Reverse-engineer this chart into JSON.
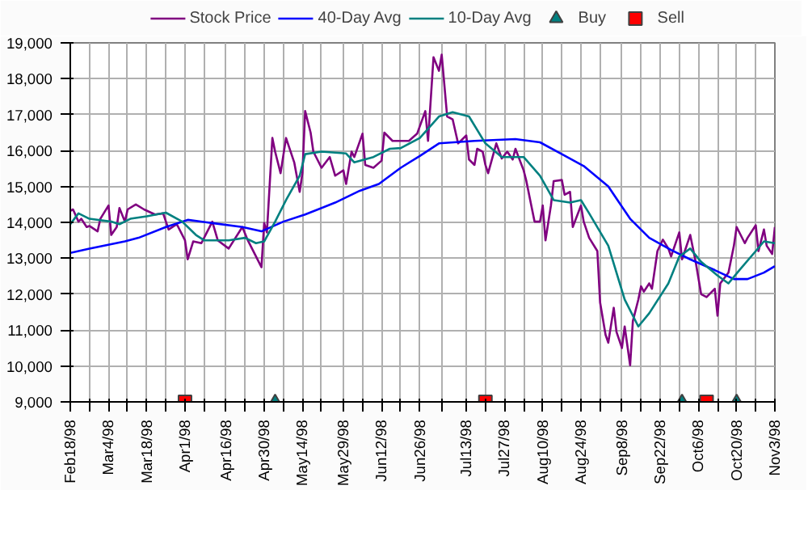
{
  "chart_data": {
    "type": "line",
    "xlim": [
      "1998-02-18",
      "1998-11-03"
    ],
    "ylim": [
      9000,
      19000
    ],
    "xticks": [
      {
        "value": "1998-02-18",
        "label": "Feb18/98"
      },
      {
        "value": "1998-02-25",
        "label": null
      },
      {
        "value": "1998-03-04",
        "label": "Mar4/98"
      },
      {
        "value": "1998-03-11",
        "label": null
      },
      {
        "value": "1998-03-18",
        "label": "Mar18/98"
      },
      {
        "value": "1998-03-25",
        "label": null
      },
      {
        "value": "1998-04-01",
        "label": "Apr1/98"
      },
      {
        "value": "1998-04-08",
        "label": null
      },
      {
        "value": "1998-04-16",
        "label": "Apr16/98"
      },
      {
        "value": "1998-04-23",
        "label": null
      },
      {
        "value": "1998-04-30",
        "label": "Apr30/98"
      },
      {
        "value": "1998-05-07",
        "label": null
      },
      {
        "value": "1998-05-14",
        "label": "May14/98"
      },
      {
        "value": "1998-05-21",
        "label": null
      },
      {
        "value": "1998-05-29",
        "label": "May29/98"
      },
      {
        "value": "1998-06-05",
        "label": null
      },
      {
        "value": "1998-06-12",
        "label": "Jun12/98"
      },
      {
        "value": "1998-06-19",
        "label": null
      },
      {
        "value": "1998-06-26",
        "label": "Jun26/98"
      },
      {
        "value": "1998-07-04",
        "label": null
      },
      {
        "value": "1998-07-13",
        "label": "Jul13/98"
      },
      {
        "value": "1998-07-20",
        "label": null
      },
      {
        "value": "1998-07-27",
        "label": "Jul27/98"
      },
      {
        "value": "1998-08-03",
        "label": null
      },
      {
        "value": "1998-08-10",
        "label": "Aug10/98"
      },
      {
        "value": "1998-08-17",
        "label": null
      },
      {
        "value": "1998-08-24",
        "label": "Aug24/98"
      },
      {
        "value": "1998-08-31",
        "label": null
      },
      {
        "value": "1998-09-08",
        "label": "Sep8/98"
      },
      {
        "value": "1998-09-15",
        "label": null
      },
      {
        "value": "1998-09-22",
        "label": "Sep22/98"
      },
      {
        "value": "1998-09-29",
        "label": null
      },
      {
        "value": "1998-10-06",
        "label": "Oct6/98"
      },
      {
        "value": "1998-10-13",
        "label": null
      },
      {
        "value": "1998-10-20",
        "label": "Oct20/98"
      },
      {
        "value": "1998-10-27",
        "label": null
      },
      {
        "value": "1998-11-03",
        "label": "Nov3/98"
      }
    ],
    "yticks": [
      {
        "value": 9000,
        "label": "9,000"
      },
      {
        "value": 10000,
        "label": "10,000"
      },
      {
        "value": 11000,
        "label": "11,000"
      },
      {
        "value": 12000,
        "label": "12,000"
      },
      {
        "value": 13000,
        "label": "13,000"
      },
      {
        "value": 14000,
        "label": "14,000"
      },
      {
        "value": 15000,
        "label": "15,000"
      },
      {
        "value": 16000,
        "label": "16,000"
      },
      {
        "value": 17000,
        "label": "17,000"
      },
      {
        "value": 18000,
        "label": "18,000"
      },
      {
        "value": 19000,
        "label": "19,000"
      }
    ],
    "grid": true,
    "legend": "top",
    "line_style": "solid",
    "marker": "none",
    "series": [
      {
        "name": "Stock Price",
        "color": "#800080",
        "x": [
          "1998-02-18",
          "1998-02-19",
          "1998-02-21",
          "1998-02-22",
          "1998-02-24",
          "1998-02-25",
          "1998-02-28",
          "1998-03-01",
          "1998-03-04",
          "1998-03-05",
          "1998-03-07",
          "1998-03-08",
          "1998-03-10",
          "1998-03-11",
          "1998-03-14",
          "1998-03-17",
          "1998-03-21",
          "1998-03-24",
          "1998-03-26",
          "1998-03-29",
          "1998-04-01",
          "1998-04-02",
          "1998-04-04",
          "1998-04-07",
          "1998-04-11",
          "1998-04-13",
          "1998-04-17",
          "1998-04-22",
          "1998-04-24",
          "1998-04-27",
          "1998-04-29",
          "1998-04-30",
          "1998-05-01",
          "1998-05-03",
          "1998-05-04",
          "1998-05-06",
          "1998-05-08",
          "1998-05-11",
          "1998-05-13",
          "1998-05-14",
          "1998-05-15",
          "1998-05-17",
          "1998-05-18",
          "1998-05-21",
          "1998-05-24",
          "1998-05-26",
          "1998-05-29",
          "1998-05-30",
          "1998-06-01",
          "1998-06-02",
          "1998-06-05",
          "1998-06-06",
          "1998-06-09",
          "1998-06-12",
          "1998-06-13",
          "1998-06-16",
          "1998-06-22",
          "1998-06-25",
          "1998-06-28",
          "1998-06-29",
          "1998-07-01",
          "1998-07-03",
          "1998-07-04",
          "1998-07-06",
          "1998-07-08",
          "1998-07-10",
          "1998-07-13",
          "1998-07-14",
          "1998-07-16",
          "1998-07-17",
          "1998-07-19",
          "1998-07-20",
          "1998-07-21",
          "1998-07-24",
          "1998-07-26",
          "1998-07-28",
          "1998-07-30",
          "1998-07-31",
          "1998-08-03",
          "1998-08-04",
          "1998-08-07",
          "1998-08-09",
          "1998-08-10",
          "1998-08-11",
          "1998-08-13",
          "1998-08-14",
          "1998-08-17",
          "1998-08-18",
          "1998-08-20",
          "1998-08-21",
          "1998-08-24",
          "1998-08-25",
          "1998-08-27",
          "1998-08-30",
          "1998-08-31",
          "1998-09-02",
          "1998-09-03",
          "1998-09-05",
          "1998-09-06",
          "1998-09-08",
          "1998-09-09",
          "1998-09-11",
          "1998-09-12",
          "1998-09-14",
          "1998-09-15",
          "1998-09-16",
          "1998-09-18",
          "1998-09-19",
          "1998-09-21",
          "1998-09-23",
          "1998-09-25",
          "1998-09-26",
          "1998-09-29",
          "1998-09-30",
          "1998-10-03",
          "1998-10-05",
          "1998-10-07",
          "1998-10-09",
          "1998-10-12",
          "1998-10-13",
          "1998-10-14",
          "1998-10-17",
          "1998-10-19",
          "1998-10-20",
          "1998-10-23",
          "1998-10-24",
          "1998-10-27",
          "1998-10-28",
          "1998-10-30",
          "1998-10-31",
          "1998-11-02",
          "1998-11-03"
        ],
        "values": [
          14320,
          14360,
          14020,
          14100,
          13870,
          13900,
          13750,
          14100,
          14470,
          13650,
          13870,
          14400,
          14020,
          14360,
          14500,
          14360,
          14220,
          14250,
          13800,
          13950,
          13500,
          12970,
          13470,
          13420,
          14020,
          13500,
          13270,
          13870,
          13500,
          13050,
          12750,
          13980,
          13720,
          16350,
          15970,
          15370,
          16350,
          15670,
          14850,
          15370,
          17100,
          16500,
          15970,
          15520,
          15820,
          15300,
          15450,
          15070,
          15970,
          15820,
          16470,
          15600,
          15520,
          15720,
          16500,
          16270,
          16270,
          16470,
          17100,
          16270,
          18600,
          18220,
          18670,
          16950,
          16870,
          16200,
          16420,
          15750,
          15600,
          16050,
          15970,
          15600,
          15370,
          16200,
          15780,
          15970,
          15750,
          16050,
          15450,
          15150,
          14020,
          14020,
          14470,
          13500,
          14470,
          15150,
          15180,
          14770,
          14850,
          13870,
          14470,
          14020,
          13570,
          13200,
          11770,
          10870,
          10650,
          11620,
          10950,
          10500,
          11100,
          10020,
          11250,
          11850,
          12220,
          12070,
          12300,
          12150,
          13200,
          13520,
          13270,
          13050,
          13720,
          12970,
          13650,
          12900,
          12000,
          11920,
          12150,
          11400,
          12300,
          12600,
          13350,
          13870,
          13420,
          13570,
          13920,
          13200,
          13800,
          13350,
          13120,
          13870
        ]
      },
      {
        "name": "40-Day Avg",
        "color": "#0000ff",
        "x": [
          "1998-02-18",
          "1998-02-25",
          "1998-03-10",
          "1998-03-15",
          "1998-03-25",
          "1998-04-02",
          "1998-04-11",
          "1998-04-22",
          "1998-04-29",
          "1998-05-07",
          "1998-05-15",
          "1998-05-26",
          "1998-06-04",
          "1998-06-11",
          "1998-06-19",
          "1998-06-26",
          "1998-07-03",
          "1998-07-16",
          "1998-07-31",
          "1998-08-09",
          "1998-08-17",
          "1998-08-25",
          "1998-09-03",
          "1998-09-11",
          "1998-09-18",
          "1998-09-26",
          "1998-10-03",
          "1998-10-12",
          "1998-10-19",
          "1998-10-24",
          "1998-10-30",
          "1998-11-03"
        ],
        "values": [
          13150,
          13270,
          13470,
          13570,
          13870,
          14070,
          13980,
          13870,
          13750,
          14020,
          14220,
          14550,
          14880,
          15070,
          15520,
          15850,
          16200,
          16270,
          16320,
          16230,
          15900,
          15570,
          15000,
          14100,
          13570,
          13230,
          12970,
          12670,
          12420,
          12420,
          12600,
          12780
        ]
      },
      {
        "name": "10-Day Avg",
        "color": "#008080",
        "x": [
          "1998-02-18",
          "1998-02-21",
          "1998-02-25",
          "1998-03-05",
          "1998-03-08",
          "1998-03-12",
          "1998-03-18",
          "1998-03-25",
          "1998-03-31",
          "1998-04-05",
          "1998-04-08",
          "1998-04-17",
          "1998-04-23",
          "1998-04-27",
          "1998-04-30",
          "1998-05-04",
          "1998-05-08",
          "1998-05-13",
          "1998-05-15",
          "1998-05-21",
          "1998-05-30",
          "1998-06-02",
          "1998-06-09",
          "1998-06-15",
          "1998-06-19",
          "1998-06-26",
          "1998-07-03",
          "1998-07-08",
          "1998-07-14",
          "1998-07-20",
          "1998-07-26",
          "1998-08-03",
          "1998-08-09",
          "1998-08-14",
          "1998-08-20",
          "1998-08-24",
          "1998-08-27",
          "1998-09-03",
          "1998-09-09",
          "1998-09-14",
          "1998-09-18",
          "1998-09-25",
          "1998-09-29",
          "1998-10-03",
          "1998-10-07",
          "1998-10-13",
          "1998-10-17",
          "1998-10-21",
          "1998-10-27",
          "1998-10-30",
          "1998-11-03"
        ],
        "values": [
          13950,
          14250,
          14100,
          14020,
          13950,
          14100,
          14170,
          14270,
          14020,
          13650,
          13500,
          13500,
          13570,
          13420,
          13470,
          14020,
          14620,
          15300,
          15900,
          15970,
          15920,
          15670,
          15820,
          16050,
          16070,
          16350,
          16950,
          17070,
          16950,
          16200,
          15820,
          15820,
          15300,
          14620,
          14550,
          14620,
          14250,
          13350,
          11850,
          11100,
          11470,
          12300,
          13050,
          13270,
          12900,
          12520,
          12300,
          12670,
          13200,
          13470,
          13420
        ]
      },
      {
        "name": "Buy",
        "type": "scatter",
        "marker": "triangle",
        "color": "#008080",
        "x": [
          "1998-05-04",
          "1998-09-30",
          "1998-10-20"
        ],
        "values": [
          9000,
          9000,
          9000
        ]
      },
      {
        "name": "Sell",
        "type": "scatter",
        "marker": "square",
        "color": "#ff0000",
        "x": [
          "1998-04-01",
          "1998-07-20",
          "1998-10-09"
        ],
        "values": [
          9000,
          9000,
          9000
        ]
      }
    ]
  }
}
